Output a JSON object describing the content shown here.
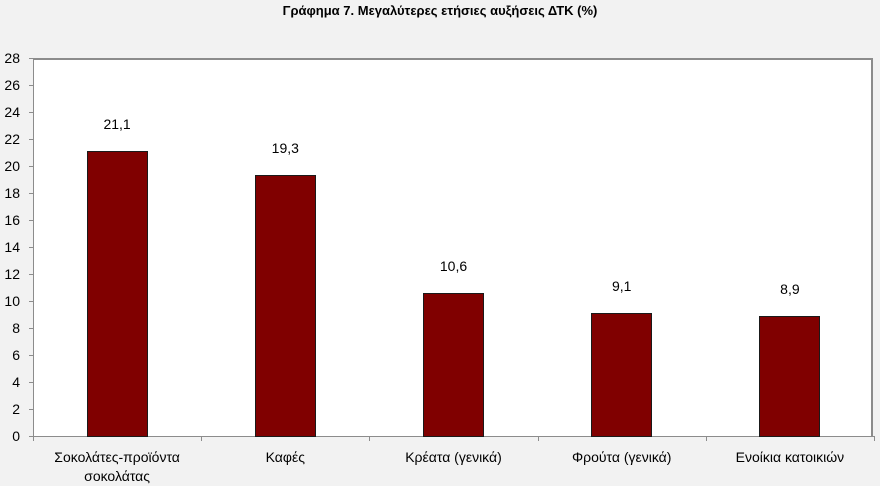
{
  "title": "Γράφημα 7. Μεγαλύτερες ετήσιες αυξήσεις ΔΤΚ (%)",
  "chart_data": {
    "type": "bar",
    "title": "Γράφημα 7. Μεγαλύτερες ετήσιες αυξήσεις ΔΤΚ (%)",
    "categories": [
      "Σοκολάτες-προϊόντα σοκολάτας",
      "Καφές",
      "Κρέατα (γενικά)",
      "Φρούτα (γενικά)",
      "Ενοίκια κατοικιών"
    ],
    "values": [
      21.1,
      19.3,
      10.6,
      9.1,
      8.9
    ],
    "value_labels": [
      "21,1",
      "19,3",
      "10,6",
      "9,1",
      "8,9"
    ],
    "xlabel": "",
    "ylabel": "",
    "ylim": [
      0,
      28
    ],
    "yticks": [
      0,
      2,
      4,
      6,
      8,
      10,
      12,
      14,
      16,
      18,
      20,
      22,
      24,
      26,
      28
    ],
    "grid": false,
    "legend": null,
    "bar_color": "#800000"
  }
}
